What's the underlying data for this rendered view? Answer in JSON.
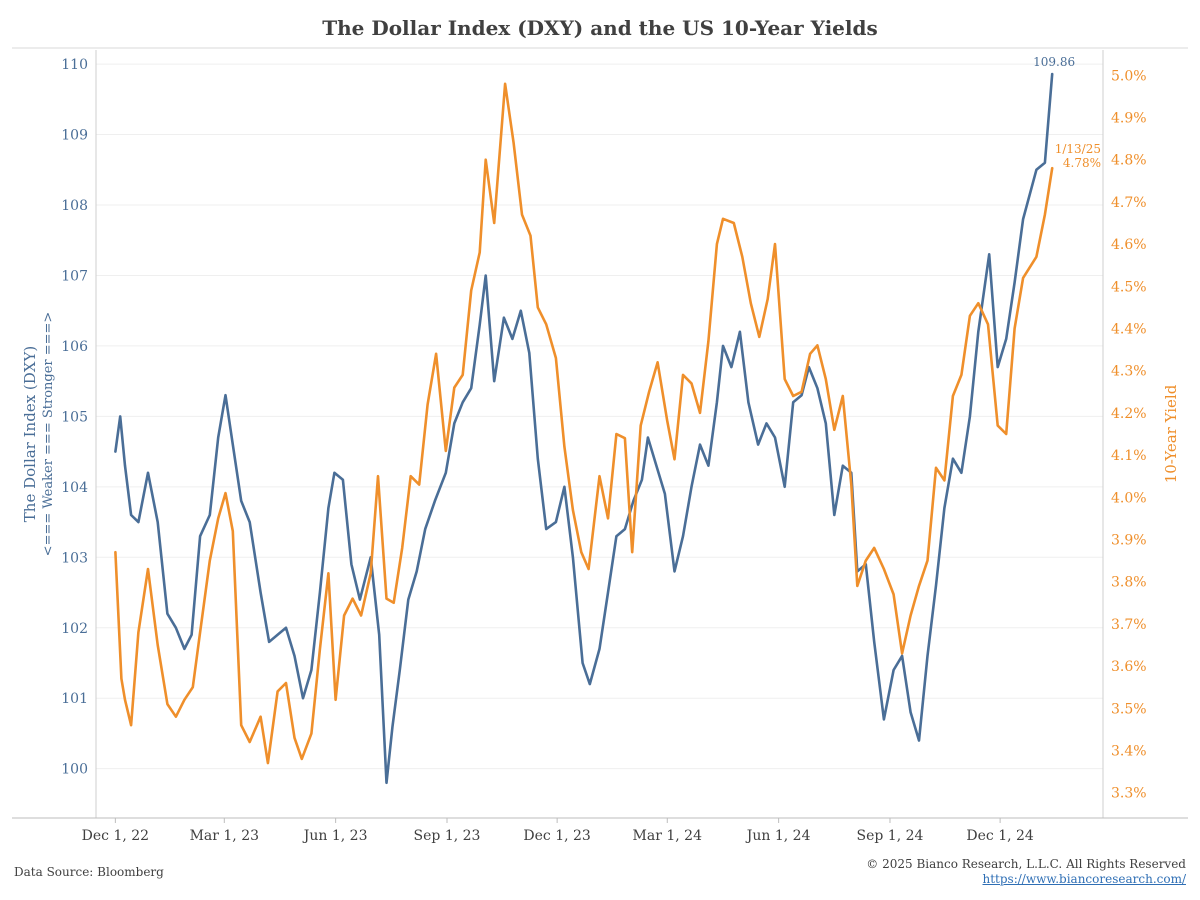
{
  "chart_data": {
    "type": "line",
    "title": "The Dollar Index (DXY)  and the US 10-Year Yields",
    "x_ticks": [
      "Dec 1, 22",
      "Mar 1, 23",
      "Jun 1, 23",
      "Sep 1, 23",
      "Dec 1, 23",
      "Mar 1, 24",
      "Jun 1, 24",
      "Sep 1, 24",
      "Dec 1, 24"
    ],
    "x_tick_dates": [
      "2022-12-01",
      "2023-03-01",
      "2023-06-01",
      "2023-09-01",
      "2023-12-01",
      "2024-03-01",
      "2024-06-01",
      "2024-09-01",
      "2024-12-01"
    ],
    "xlim": [
      "2022-11-15",
      "2025-02-24"
    ],
    "y_left": {
      "label_line1": "The Dollar Index (DXY)",
      "label_line2": "<=== Weaker === Stronger ===>",
      "ticks": [
        "110",
        "109",
        "108",
        "107",
        "106",
        "105",
        "104",
        "103",
        "102",
        "101",
        "100"
      ],
      "ylim": [
        99.3,
        110.2
      ],
      "color": "#4a6e97"
    },
    "y_right": {
      "label": "10-Year Yield",
      "ticks": [
        "5.0%",
        "4.9%",
        "4.8%",
        "4.7%",
        "4.6%",
        "4.5%",
        "4.4%",
        "4.3%",
        "4.2%",
        "4.1%",
        "4.0%",
        "3.9%",
        "3.8%",
        "3.7%",
        "3.6%",
        "3.5%",
        "3.4%",
        "3.3%"
      ],
      "ylim": [
        3.24,
        5.06
      ],
      "color": "#ef8f2b"
    },
    "grid": true,
    "series": [
      {
        "axis": "left",
        "color": "#4a6e97",
        "dates": [
          "2022-12-01",
          "2022-12-05",
          "2022-12-09",
          "2022-12-14",
          "2022-12-20",
          "2022-12-28",
          "2023-01-05",
          "2023-01-13",
          "2023-01-20",
          "2023-01-27",
          "2023-02-02",
          "2023-02-09",
          "2023-02-17",
          "2023-02-24",
          "2023-03-02",
          "2023-03-08",
          "2023-03-15",
          "2023-03-22",
          "2023-03-31",
          "2023-04-07",
          "2023-04-14",
          "2023-04-21",
          "2023-04-28",
          "2023-05-05",
          "2023-05-12",
          "2023-05-19",
          "2023-05-26",
          "2023-05-31",
          "2023-06-07",
          "2023-06-14",
          "2023-06-21",
          "2023-06-30",
          "2023-07-07",
          "2023-07-13",
          "2023-07-18",
          "2023-07-24",
          "2023-07-31",
          "2023-08-07",
          "2023-08-14",
          "2023-08-22",
          "2023-08-31",
          "2023-09-07",
          "2023-09-14",
          "2023-09-21",
          "2023-09-28",
          "2023-10-03",
          "2023-10-10",
          "2023-10-18",
          "2023-10-25",
          "2023-11-01",
          "2023-11-08",
          "2023-11-15",
          "2023-11-22",
          "2023-11-30",
          "2023-12-07",
          "2023-12-14",
          "2023-12-22",
          "2023-12-28",
          "2024-01-05",
          "2024-01-12",
          "2024-01-19",
          "2024-01-26",
          "2024-02-02",
          "2024-02-09",
          "2024-02-14",
          "2024-02-21",
          "2024-02-28",
          "2024-03-07",
          "2024-03-14",
          "2024-03-21",
          "2024-03-28",
          "2024-04-04",
          "2024-04-11",
          "2024-04-16",
          "2024-04-23",
          "2024-04-30",
          "2024-05-07",
          "2024-05-15",
          "2024-05-22",
          "2024-05-29",
          "2024-06-06",
          "2024-06-13",
          "2024-06-20",
          "2024-06-26",
          "2024-07-03",
          "2024-07-10",
          "2024-07-17",
          "2024-07-24",
          "2024-07-31",
          "2024-08-05",
          "2024-08-12",
          "2024-08-19",
          "2024-08-27",
          "2024-09-04",
          "2024-09-11",
          "2024-09-18",
          "2024-09-25",
          "2024-10-02",
          "2024-10-09",
          "2024-10-16",
          "2024-10-23",
          "2024-10-30",
          "2024-11-06",
          "2024-11-13",
          "2024-11-22",
          "2024-11-29",
          "2024-12-06",
          "2024-12-13",
          "2024-12-20",
          "2024-12-31",
          "2025-01-07",
          "2025-01-13"
        ],
        "values": [
          104.5,
          105.0,
          104.3,
          103.6,
          103.5,
          104.2,
          103.5,
          102.2,
          102.0,
          101.7,
          101.9,
          103.3,
          103.6,
          104.7,
          105.3,
          104.6,
          103.8,
          103.5,
          102.5,
          101.8,
          101.9,
          102.0,
          101.6,
          101.0,
          101.4,
          102.5,
          103.7,
          104.2,
          104.1,
          102.9,
          102.4,
          103.0,
          101.9,
          99.8,
          100.6,
          101.4,
          102.4,
          102.8,
          103.4,
          103.8,
          104.2,
          104.9,
          105.2,
          105.4,
          106.3,
          107.0,
          105.5,
          106.4,
          106.1,
          106.5,
          105.9,
          104.4,
          103.4,
          103.5,
          104.0,
          103.0,
          101.5,
          101.2,
          101.7,
          102.5,
          103.3,
          103.4,
          103.8,
          104.1,
          104.7,
          104.3,
          103.9,
          102.8,
          103.3,
          104.0,
          104.6,
          104.3,
          105.2,
          106.0,
          105.7,
          106.2,
          105.2,
          104.6,
          104.9,
          104.7,
          104.0,
          105.2,
          105.3,
          105.7,
          105.4,
          104.9,
          103.6,
          104.3,
          104.2,
          102.8,
          102.9,
          101.8,
          100.7,
          101.4,
          101.6,
          100.8,
          100.4,
          101.6,
          102.6,
          103.7,
          104.4,
          104.2,
          105.0,
          106.2,
          107.3,
          105.7,
          106.1,
          106.9,
          107.8,
          108.5,
          108.6,
          109.86
        ]
      },
      {
        "axis": "right",
        "color": "#ef8f2b",
        "dates": [
          "2022-12-01",
          "2022-12-06",
          "2022-12-09",
          "2022-12-14",
          "2022-12-20",
          "2022-12-28",
          "2023-01-05",
          "2023-01-13",
          "2023-01-20",
          "2023-01-27",
          "2023-02-03",
          "2023-02-09",
          "2023-02-17",
          "2023-02-24",
          "2023-03-02",
          "2023-03-08",
          "2023-03-15",
          "2023-03-22",
          "2023-03-31",
          "2023-04-06",
          "2023-04-14",
          "2023-04-21",
          "2023-04-28",
          "2023-05-04",
          "2023-05-12",
          "2023-05-19",
          "2023-05-26",
          "2023-06-01",
          "2023-06-08",
          "2023-06-15",
          "2023-06-22",
          "2023-06-30",
          "2023-07-06",
          "2023-07-13",
          "2023-07-19",
          "2023-07-26",
          "2023-08-02",
          "2023-08-09",
          "2023-08-16",
          "2023-08-23",
          "2023-08-31",
          "2023-09-07",
          "2023-09-14",
          "2023-09-21",
          "2023-09-28",
          "2023-10-03",
          "2023-10-10",
          "2023-10-19",
          "2023-10-26",
          "2023-11-02",
          "2023-11-09",
          "2023-11-15",
          "2023-11-22",
          "2023-11-30",
          "2023-12-07",
          "2023-12-14",
          "2023-12-21",
          "2023-12-27",
          "2024-01-05",
          "2024-01-12",
          "2024-01-19",
          "2024-01-26",
          "2024-02-01",
          "2024-02-08",
          "2024-02-15",
          "2024-02-22",
          "2024-03-01",
          "2024-03-07",
          "2024-03-14",
          "2024-03-21",
          "2024-03-28",
          "2024-04-04",
          "2024-04-11",
          "2024-04-16",
          "2024-04-25",
          "2024-05-02",
          "2024-05-09",
          "2024-05-16",
          "2024-05-23",
          "2024-05-29",
          "2024-06-06",
          "2024-06-13",
          "2024-06-20",
          "2024-06-27",
          "2024-07-03",
          "2024-07-10",
          "2024-07-17",
          "2024-07-24",
          "2024-07-31",
          "2024-08-05",
          "2024-08-12",
          "2024-08-19",
          "2024-08-27",
          "2024-09-04",
          "2024-09-11",
          "2024-09-18",
          "2024-09-25",
          "2024-10-02",
          "2024-10-09",
          "2024-10-16",
          "2024-10-23",
          "2024-10-30",
          "2024-11-06",
          "2024-11-13",
          "2024-11-21",
          "2024-11-29",
          "2024-12-06",
          "2024-12-13",
          "2024-12-20",
          "2024-12-31",
          "2025-01-07",
          "2025-01-13"
        ],
        "values": [
          3.87,
          3.57,
          3.52,
          3.46,
          3.68,
          3.83,
          3.65,
          3.51,
          3.48,
          3.52,
          3.55,
          3.68,
          3.85,
          3.95,
          4.01,
          3.92,
          3.46,
          3.42,
          3.48,
          3.37,
          3.54,
          3.56,
          3.43,
          3.38,
          3.44,
          3.64,
          3.82,
          3.52,
          3.72,
          3.76,
          3.72,
          3.82,
          4.05,
          3.76,
          3.75,
          3.88,
          4.05,
          4.03,
          4.22,
          4.34,
          4.11,
          4.26,
          4.29,
          4.49,
          4.58,
          4.8,
          4.65,
          4.98,
          4.84,
          4.67,
          4.62,
          4.45,
          4.41,
          4.33,
          4.12,
          3.97,
          3.87,
          3.83,
          4.05,
          3.95,
          4.15,
          4.14,
          3.87,
          4.17,
          4.25,
          4.32,
          4.18,
          4.09,
          4.29,
          4.27,
          4.2,
          4.37,
          4.6,
          4.66,
          4.65,
          4.57,
          4.46,
          4.38,
          4.47,
          4.6,
          4.28,
          4.24,
          4.25,
          4.34,
          4.36,
          4.28,
          4.16,
          4.24,
          4.03,
          3.79,
          3.85,
          3.88,
          3.83,
          3.77,
          3.63,
          3.72,
          3.79,
          3.85,
          4.07,
          4.04,
          4.24,
          4.29,
          4.43,
          4.46,
          4.41,
          4.17,
          4.15,
          4.4,
          4.52,
          4.57,
          4.67,
          4.78
        ]
      }
    ],
    "annotations": {
      "dxy_last": "109.86",
      "yield_last_date": "1/13/25",
      "yield_last": "4.78%"
    }
  },
  "footer": {
    "source": "Data Source: Bloomberg",
    "copyright": "© 2025 Bianco Research, L.L.C. All Rights Reserved",
    "url": "https://www.biancoresearch.com/"
  }
}
